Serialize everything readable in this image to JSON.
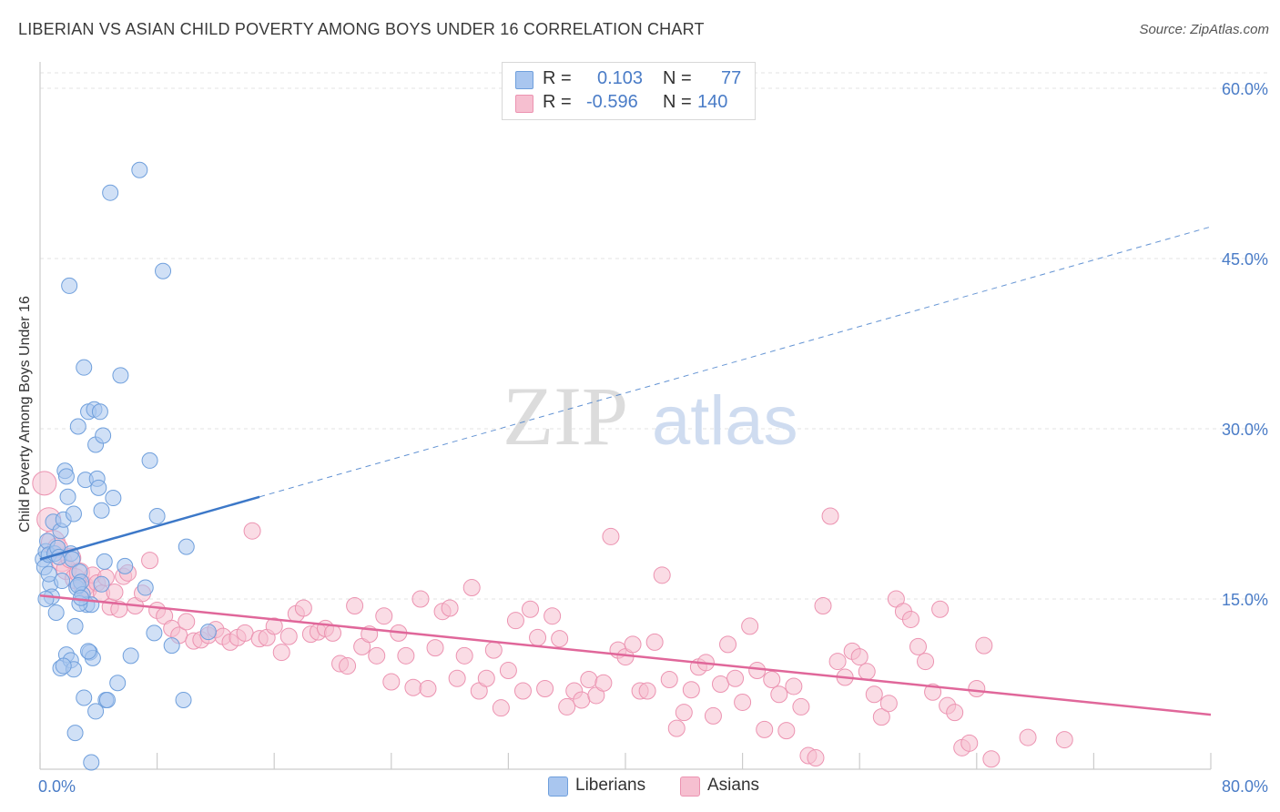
{
  "title": "LIBERIAN VS ASIAN CHILD POVERTY AMONG BOYS UNDER 16 CORRELATION CHART",
  "source": "Source: ZipAtlas.com",
  "watermark": {
    "zip": "ZIP",
    "atlas": "atlas"
  },
  "colors": {
    "blue_fill": "#a9c6ef",
    "blue_stroke": "#6f9fdc",
    "blue_line": "#3c78c8",
    "pink_fill": "#f6bfd0",
    "pink_stroke": "#ec93b1",
    "pink_line": "#e0679a",
    "tick_label": "#4a7cc7",
    "grid": "#e3e3e3"
  },
  "legend": {
    "rows": [
      {
        "r_label": "R =",
        "r_value": "0.103",
        "n_label": "N =",
        "n_value": "77",
        "color": "#a9c6ef"
      },
      {
        "r_label": "R =",
        "r_value": "-0.596",
        "n_label": "N =",
        "n_value": "140",
        "color": "#f6bfd0"
      }
    ]
  },
  "bottom_legend": {
    "liberians": "Liberians",
    "asians": "Asians"
  },
  "chart_data": {
    "type": "scatter",
    "title": "LIBERIAN VS ASIAN CHILD POVERTY AMONG BOYS UNDER 16 CORRELATION CHART",
    "xlabel": "",
    "ylabel": "Child Poverty Among Boys Under 16",
    "xlim": [
      0,
      80
    ],
    "ylim": [
      0,
      60
    ],
    "x_tick_labels": [
      "0.0%",
      "80.0%"
    ],
    "y_tick_labels": [
      "15.0%",
      "30.0%",
      "45.0%",
      "60.0%"
    ],
    "y_ticks": [
      15,
      30,
      45,
      60
    ],
    "grid": true,
    "legend_position": "top-center",
    "series": [
      {
        "name": "Liberians",
        "r": 0.103,
        "n": 77,
        "trend": {
          "x0": 0,
          "y0": 18.5,
          "x1": 15,
          "y1": 24.0,
          "dashed_to_x": 80,
          "dashed_to_y": 47.8
        },
        "points": [
          [
            0.2,
            18.5
          ],
          [
            0.3,
            17.8
          ],
          [
            0.4,
            19.2
          ],
          [
            0.5,
            20.1
          ],
          [
            0.6,
            18.9
          ],
          [
            0.7,
            16.3
          ],
          [
            0.8,
            15.2
          ],
          [
            0.9,
            21.8
          ],
          [
            1.0,
            19.0
          ],
          [
            1.1,
            13.8
          ],
          [
            0.4,
            15.0
          ],
          [
            0.6,
            17.2
          ],
          [
            1.2,
            19.5
          ],
          [
            1.3,
            18.7
          ],
          [
            1.4,
            21.0
          ],
          [
            1.5,
            16.6
          ],
          [
            1.6,
            22.0
          ],
          [
            1.7,
            26.3
          ],
          [
            1.8,
            25.8
          ],
          [
            1.9,
            24.0
          ],
          [
            2.0,
            42.6
          ],
          [
            2.1,
            19.0
          ],
          [
            2.2,
            18.5
          ],
          [
            2.3,
            22.5
          ],
          [
            2.4,
            12.6
          ],
          [
            2.5,
            16.0
          ],
          [
            2.6,
            30.2
          ],
          [
            2.7,
            17.4
          ],
          [
            2.8,
            16.5
          ],
          [
            2.9,
            15.4
          ],
          [
            3.0,
            35.4
          ],
          [
            3.1,
            25.5
          ],
          [
            3.2,
            14.5
          ],
          [
            3.3,
            31.5
          ],
          [
            3.4,
            10.3
          ],
          [
            3.5,
            14.5
          ],
          [
            3.6,
            9.8
          ],
          [
            3.7,
            31.7
          ],
          [
            3.8,
            28.6
          ],
          [
            3.9,
            25.6
          ],
          [
            4.0,
            24.8
          ],
          [
            4.1,
            31.5
          ],
          [
            4.2,
            22.8
          ],
          [
            4.3,
            29.4
          ],
          [
            4.4,
            18.3
          ],
          [
            4.5,
            6.1
          ],
          [
            4.8,
            50.8
          ],
          [
            5.0,
            23.9
          ],
          [
            5.3,
            7.6
          ],
          [
            5.5,
            34.7
          ],
          [
            5.8,
            17.9
          ],
          [
            6.2,
            10.0
          ],
          [
            6.8,
            52.8
          ],
          [
            7.2,
            16.0
          ],
          [
            7.5,
            27.2
          ],
          [
            7.8,
            12.0
          ],
          [
            8.0,
            22.3
          ],
          [
            8.4,
            43.9
          ],
          [
            9.0,
            10.9
          ],
          [
            9.8,
            6.1
          ],
          [
            10.0,
            19.6
          ],
          [
            11.5,
            12.1
          ],
          [
            1.4,
            8.9
          ],
          [
            1.8,
            10.1
          ],
          [
            2.1,
            9.6
          ],
          [
            2.3,
            8.8
          ],
          [
            2.4,
            3.2
          ],
          [
            2.7,
            14.6
          ],
          [
            3.0,
            6.3
          ],
          [
            3.5,
            0.6
          ],
          [
            3.8,
            5.1
          ],
          [
            4.2,
            16.3
          ],
          [
            4.6,
            6.1
          ],
          [
            2.6,
            16.2
          ],
          [
            1.6,
            9.1
          ],
          [
            2.8,
            15.1
          ],
          [
            3.3,
            10.4
          ]
        ]
      },
      {
        "name": "Asians",
        "r": -0.596,
        "n": 140,
        "trend": {
          "x0": 0,
          "y0": 15.3,
          "x1": 80,
          "y1": 4.8
        },
        "points": [
          [
            0.3,
            25.2
          ],
          [
            0.6,
            22.0
          ],
          [
            0.9,
            20.0
          ],
          [
            1.2,
            19.5
          ],
          [
            1.5,
            18.3
          ],
          [
            1.8,
            17.6
          ],
          [
            2.1,
            18.6
          ],
          [
            2.4,
            16.8
          ],
          [
            2.7,
            17.3
          ],
          [
            3.0,
            16.1
          ],
          [
            3.3,
            15.8
          ],
          [
            3.6,
            17.1
          ],
          [
            3.9,
            16.4
          ],
          [
            4.2,
            15.5
          ],
          [
            4.5,
            16.9
          ],
          [
            4.8,
            14.3
          ],
          [
            5.1,
            15.6
          ],
          [
            5.4,
            14.1
          ],
          [
            5.7,
            17.0
          ],
          [
            6.0,
            17.3
          ],
          [
            6.5,
            14.4
          ],
          [
            7.0,
            15.5
          ],
          [
            7.5,
            18.4
          ],
          [
            8.0,
            14.0
          ],
          [
            8.5,
            13.5
          ],
          [
            9.0,
            12.4
          ],
          [
            9.5,
            11.8
          ],
          [
            10.0,
            13.0
          ],
          [
            10.5,
            11.3
          ],
          [
            11.0,
            11.4
          ],
          [
            11.5,
            11.8
          ],
          [
            12.0,
            12.3
          ],
          [
            12.5,
            11.7
          ],
          [
            13.0,
            11.2
          ],
          [
            13.5,
            11.6
          ],
          [
            14.0,
            12.0
          ],
          [
            14.5,
            21.0
          ],
          [
            15.0,
            11.5
          ],
          [
            15.5,
            11.6
          ],
          [
            16.0,
            12.6
          ],
          [
            16.5,
            10.3
          ],
          [
            17.0,
            11.7
          ],
          [
            17.5,
            13.7
          ],
          [
            18.0,
            14.2
          ],
          [
            18.5,
            11.9
          ],
          [
            19.0,
            12.1
          ],
          [
            19.5,
            12.4
          ],
          [
            20.0,
            12.0
          ],
          [
            20.5,
            9.3
          ],
          [
            21.0,
            9.1
          ],
          [
            21.5,
            14.4
          ],
          [
            22.0,
            10.8
          ],
          [
            22.5,
            11.9
          ],
          [
            23.0,
            10.0
          ],
          [
            23.5,
            13.5
          ],
          [
            24.0,
            7.7
          ],
          [
            24.5,
            12.0
          ],
          [
            25.0,
            10.0
          ],
          [
            25.5,
            7.2
          ],
          [
            26.0,
            15.0
          ],
          [
            26.5,
            7.1
          ],
          [
            27.0,
            10.7
          ],
          [
            27.5,
            13.9
          ],
          [
            28.0,
            14.2
          ],
          [
            28.5,
            8.0
          ],
          [
            29.0,
            10.0
          ],
          [
            29.5,
            16.0
          ],
          [
            30.0,
            6.9
          ],
          [
            30.5,
            8.0
          ],
          [
            31.0,
            10.5
          ],
          [
            31.5,
            5.4
          ],
          [
            32.0,
            8.7
          ],
          [
            32.5,
            13.1
          ],
          [
            33.0,
            6.9
          ],
          [
            33.5,
            14.1
          ],
          [
            34.0,
            11.6
          ],
          [
            34.5,
            7.1
          ],
          [
            35.0,
            13.5
          ],
          [
            35.5,
            11.5
          ],
          [
            36.0,
            5.5
          ],
          [
            36.5,
            6.9
          ],
          [
            37.0,
            6.1
          ],
          [
            37.5,
            7.9
          ],
          [
            38.0,
            6.5
          ],
          [
            38.5,
            7.6
          ],
          [
            39.0,
            20.5
          ],
          [
            39.5,
            10.5
          ],
          [
            40.0,
            9.9
          ],
          [
            40.5,
            11.0
          ],
          [
            41.0,
            6.9
          ],
          [
            41.5,
            6.9
          ],
          [
            42.0,
            11.2
          ],
          [
            42.5,
            17.1
          ],
          [
            43.0,
            7.9
          ],
          [
            43.5,
            3.6
          ],
          [
            44.0,
            5.0
          ],
          [
            44.5,
            7.0
          ],
          [
            45.0,
            9.0
          ],
          [
            45.5,
            9.4
          ],
          [
            46.0,
            4.7
          ],
          [
            46.5,
            7.5
          ],
          [
            47.0,
            11.0
          ],
          [
            47.5,
            8.0
          ],
          [
            48.0,
            5.9
          ],
          [
            48.5,
            12.6
          ],
          [
            49.0,
            8.7
          ],
          [
            49.5,
            3.5
          ],
          [
            50.0,
            7.9
          ],
          [
            50.5,
            6.6
          ],
          [
            51.0,
            3.4
          ],
          [
            51.5,
            7.3
          ],
          [
            52.0,
            5.5
          ],
          [
            52.5,
            1.2
          ],
          [
            53.0,
            1.0
          ],
          [
            53.5,
            14.4
          ],
          [
            54.0,
            22.3
          ],
          [
            54.5,
            9.5
          ],
          [
            55.0,
            8.1
          ],
          [
            55.5,
            10.4
          ],
          [
            56.0,
            9.9
          ],
          [
            56.5,
            8.6
          ],
          [
            57.0,
            6.6
          ],
          [
            57.5,
            4.6
          ],
          [
            58.0,
            5.8
          ],
          [
            58.5,
            15.0
          ],
          [
            59.0,
            13.9
          ],
          [
            59.5,
            13.2
          ],
          [
            60.0,
            10.8
          ],
          [
            60.5,
            9.5
          ],
          [
            61.0,
            6.8
          ],
          [
            61.5,
            14.1
          ],
          [
            62.0,
            5.6
          ],
          [
            62.5,
            5.0
          ],
          [
            63.0,
            1.9
          ],
          [
            63.5,
            2.3
          ],
          [
            64.0,
            7.1
          ],
          [
            64.5,
            10.9
          ],
          [
            65.0,
            0.9
          ],
          [
            67.5,
            2.8
          ],
          [
            70.0,
            2.6
          ]
        ]
      }
    ]
  }
}
